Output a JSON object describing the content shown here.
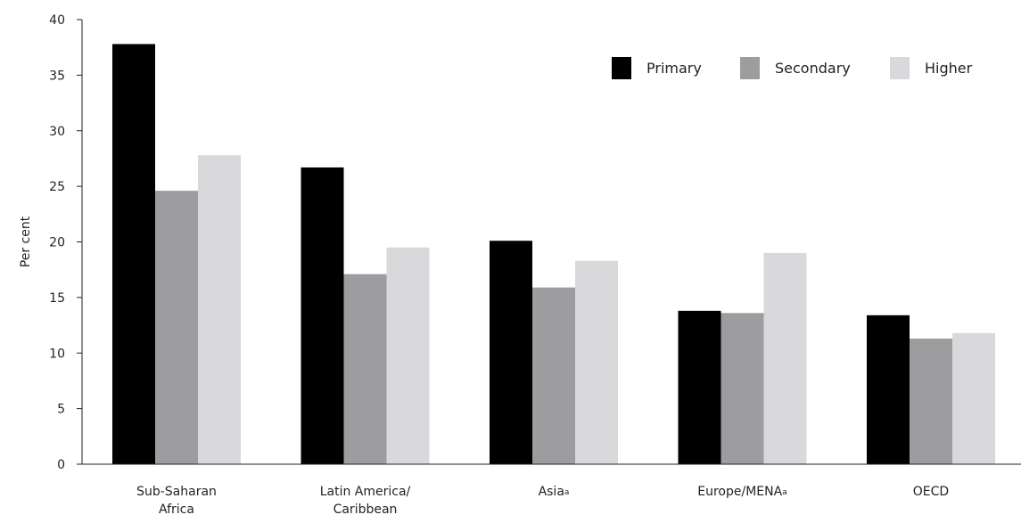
{
  "chart_data": {
    "type": "bar",
    "title": "",
    "xlabel": "",
    "ylabel": "Per cent",
    "ylim": [
      0,
      40
    ],
    "yticks": [
      0,
      5,
      10,
      15,
      20,
      25,
      30,
      35,
      40
    ],
    "grid": false,
    "legend_position": "top-right",
    "categories": [
      {
        "lines": [
          "Sub-Saharan",
          "Africa"
        ],
        "sup": ""
      },
      {
        "lines": [
          "Latin America/",
          "Caribbean"
        ],
        "sup": ""
      },
      {
        "lines": [
          "Asia"
        ],
        "sup": "a"
      },
      {
        "lines": [
          "Europe/MENA"
        ],
        "sup": "a"
      },
      {
        "lines": [
          "OECD"
        ],
        "sup": ""
      }
    ],
    "series": [
      {
        "name": "Primary",
        "color": "#000000",
        "values": [
          37.8,
          26.7,
          20.1,
          13.8,
          13.4
        ]
      },
      {
        "name": "Secondary",
        "color": "#9d9d9f",
        "values": [
          24.6,
          17.1,
          15.9,
          13.6,
          11.3
        ]
      },
      {
        "name": "Higher",
        "color": "#d9d9db",
        "values": [
          27.8,
          19.5,
          18.3,
          19.0,
          11.8
        ]
      }
    ]
  }
}
